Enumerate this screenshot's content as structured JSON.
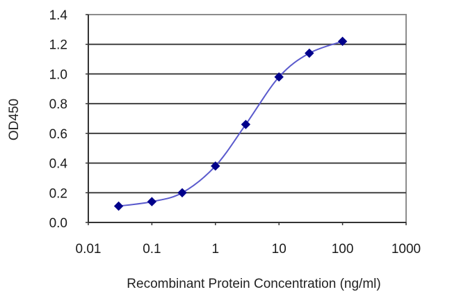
{
  "chart_data": {
    "type": "line",
    "title": "",
    "xlabel": "Recombinant Protein Concentration (ng/ml)",
    "ylabel": "OD450",
    "xscale": "log",
    "xlim": [
      0.01,
      1000
    ],
    "ylim": [
      0.0,
      1.4
    ],
    "x_ticks": [
      "0.01",
      "0.1",
      "1",
      "10",
      "100",
      "1000"
    ],
    "y_ticks": [
      "0.0",
      "0.2",
      "0.4",
      "0.6",
      "0.8",
      "1.0",
      "1.2",
      "1.4"
    ],
    "grid": "horizontal",
    "legend": null,
    "series": [
      {
        "name": "OD450",
        "marker": "diamond",
        "line": "smooth",
        "x": [
          0.03,
          0.1,
          0.3,
          1,
          3,
          10,
          30,
          100
        ],
        "values": [
          0.11,
          0.14,
          0.2,
          0.38,
          0.66,
          0.98,
          1.14,
          1.22
        ]
      }
    ]
  },
  "colors": {
    "series": "#00008b",
    "line": "#5a5acd",
    "grid": "#404040",
    "frame": "#8c8c8c"
  }
}
